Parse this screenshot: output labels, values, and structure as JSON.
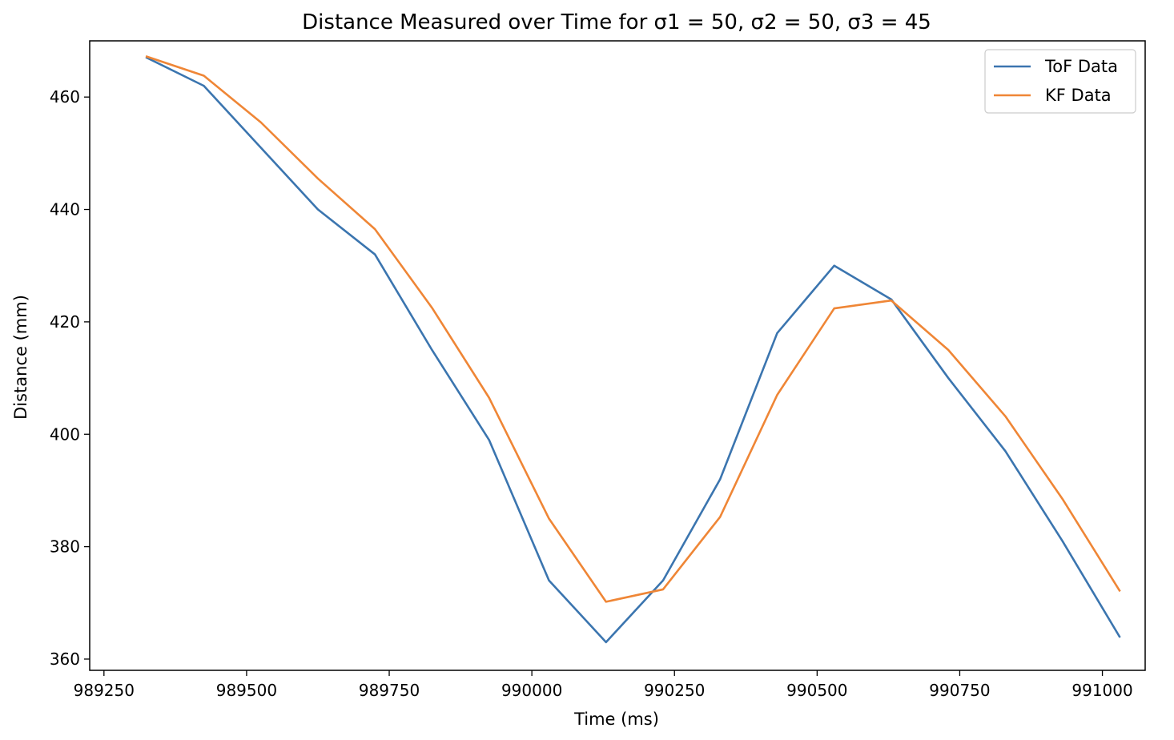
{
  "chart_data": {
    "type": "line",
    "title": "Distance Measured over Time for σ1 = 50, σ2 = 50, σ3 = 45",
    "xlabel": "Time (ms)",
    "ylabel": "Distance (mm)",
    "xlim": [
      989225,
      991075
    ],
    "ylim": [
      358,
      470
    ],
    "xticks": [
      989250,
      989500,
      989750,
      990000,
      990250,
      990500,
      990750,
      991000
    ],
    "xtick_labels": [
      "989250",
      "989500",
      "989750",
      "990000",
      "990250",
      "990500",
      "990750",
      "991000"
    ],
    "yticks": [
      360,
      380,
      400,
      420,
      440,
      460
    ],
    "ytick_labels": [
      "360",
      "380",
      "400",
      "420",
      "440",
      "460"
    ],
    "grid": false,
    "legend_position": "top-right",
    "x": [
      989325,
      989425,
      989525,
      989625,
      989725,
      989825,
      989925,
      990030,
      990130,
      990230,
      990330,
      990430,
      990530,
      990630,
      990730,
      990830,
      990930,
      991030
    ],
    "series": [
      {
        "name": "ToF Data",
        "color": "#3b75af",
        "values": [
          467,
          462,
          451,
          440,
          432,
          415,
          399,
          374,
          363,
          374,
          392,
          418,
          430,
          424,
          410,
          397,
          381,
          364
        ]
      },
      {
        "name": "KF Data",
        "color": "#ef8636",
        "values": [
          467.2,
          463.8,
          455.5,
          445.5,
          436.5,
          422.5,
          406.5,
          385,
          370.2,
          372.4,
          385.3,
          407,
          422.4,
          423.8,
          415,
          403.2,
          388.5,
          372.2
        ]
      }
    ]
  }
}
